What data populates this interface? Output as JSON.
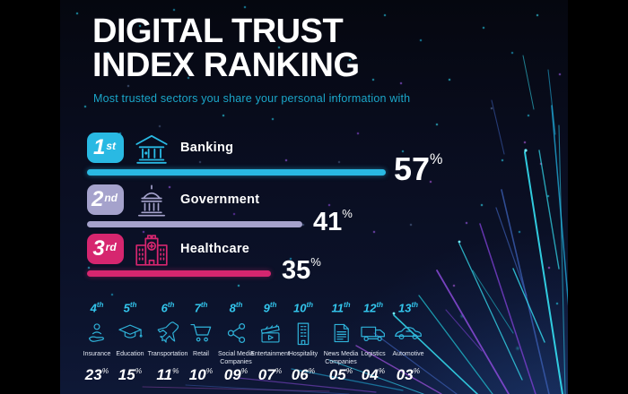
{
  "header": {
    "title_line1": "DIGITAL TRUST",
    "title_line2": "INDEX RANKING",
    "subtitle": "Most trusted sectors you share your personal information with"
  },
  "colors": {
    "accent_cyan": "#29b9e3",
    "accent_lavender": "#a5a2cc",
    "accent_pink": "#d6266f",
    "subtitle_cyan": "#1ba6c9",
    "rank_cyan": "#33c5ec",
    "background_navy": "#0a0e20"
  },
  "top_sectors": [
    {
      "rank": "1",
      "ord": "st",
      "label": "Banking",
      "value": "57",
      "unit": "%",
      "icon": "bank-icon",
      "color": "#29b9e3"
    },
    {
      "rank": "2",
      "ord": "nd",
      "label": "Government",
      "value": "41",
      "unit": "%",
      "icon": "government-icon",
      "color": "#a5a2cc"
    },
    {
      "rank": "3",
      "ord": "rd",
      "label": "Healthcare",
      "value": "35",
      "unit": "%",
      "icon": "healthcare-icon",
      "color": "#d6266f"
    }
  ],
  "other_sectors": [
    {
      "rank": "4",
      "ord": "th",
      "label": "Insurance",
      "value": "23",
      "unit": "%",
      "icon": "insurance-icon"
    },
    {
      "rank": "5",
      "ord": "th",
      "label": "Education",
      "value": "15",
      "unit": "%",
      "icon": "education-icon"
    },
    {
      "rank": "6",
      "ord": "th",
      "label": "Transportation",
      "value": "11",
      "unit": "%",
      "icon": "transportation-icon"
    },
    {
      "rank": "7",
      "ord": "th",
      "label": "Retail",
      "value": "10",
      "unit": "%",
      "icon": "retail-icon"
    },
    {
      "rank": "8",
      "ord": "th",
      "label": "Social Media Companies",
      "value": "09",
      "unit": "%",
      "icon": "social-media-icon"
    },
    {
      "rank": "9",
      "ord": "th",
      "label": "Entertainment",
      "value": "07",
      "unit": "%",
      "icon": "entertainment-icon"
    },
    {
      "rank": "10",
      "ord": "th",
      "label": "Hospitality",
      "value": "06",
      "unit": "%",
      "icon": "hospitality-icon"
    },
    {
      "rank": "11",
      "ord": "th",
      "label": "News Media Companies",
      "value": "05",
      "unit": "%",
      "icon": "news-media-icon"
    },
    {
      "rank": "12",
      "ord": "th",
      "label": "Logistics",
      "value": "04",
      "unit": "%",
      "icon": "logistics-icon"
    },
    {
      "rank": "13",
      "ord": "th",
      "label": "Automotive",
      "value": "03",
      "unit": "%",
      "icon": "automotive-icon"
    }
  ],
  "chart_data": {
    "type": "bar",
    "orientation": "horizontal",
    "title": "DIGITAL TRUST INDEX RANKING",
    "subtitle": "Most trusted sectors you share your personal information with",
    "categories": [
      "Banking",
      "Government",
      "Healthcare",
      "Insurance",
      "Education",
      "Transportation",
      "Retail",
      "Social Media Companies",
      "Entertainment",
      "Hospitality",
      "News Media Companies",
      "Logistics",
      "Automotive"
    ],
    "values": [
      57,
      41,
      35,
      23,
      15,
      11,
      10,
      9,
      7,
      6,
      5,
      4,
      3
    ],
    "value_labels": [
      "57%",
      "41%",
      "35%",
      "23%",
      "15%",
      "11%",
      "10%",
      "09%",
      "07%",
      "06%",
      "05%",
      "04%",
      "03%"
    ],
    "unit": "%",
    "xlim": [
      0,
      60
    ],
    "legend": false,
    "grid": false
  }
}
